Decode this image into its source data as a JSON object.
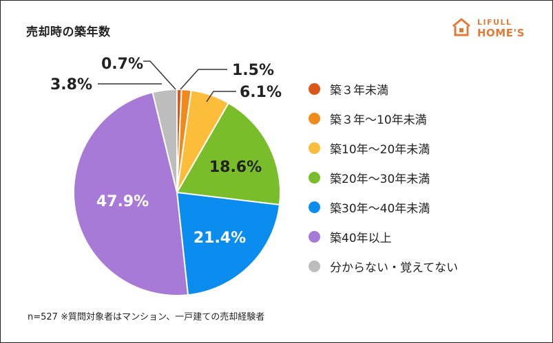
{
  "chart_title": "売却時の築年数",
  "logo": {
    "small": "LIFULL",
    "big": "HOME'S",
    "color": "#e07b39"
  },
  "note": "n=527 ※質問対象者はマンション、一戸建ての売却経験者",
  "chart_data": {
    "type": "pie",
    "title": "売却時の築年数",
    "start": "top",
    "direction": "clockwise",
    "categories": [
      "築３年未満",
      "築３年～10年未満",
      "築10年～20年未満",
      "築20年～30年未満",
      "築30年～40年未満",
      "築40年以上",
      "分からない・覚えてない"
    ],
    "values": [
      0.7,
      1.5,
      6.1,
      18.6,
      21.4,
      47.9,
      3.8
    ],
    "labels": [
      "0.7%",
      "1.5%",
      "6.1%",
      "18.6%",
      "21.4%",
      "47.9%",
      "3.8%"
    ],
    "colors": [
      "#d9571a",
      "#f08a1c",
      "#fbbd3a",
      "#79bd2a",
      "#0b8df0",
      "#a67ad6",
      "#bdbdbd"
    ],
    "legend_position": "right"
  }
}
